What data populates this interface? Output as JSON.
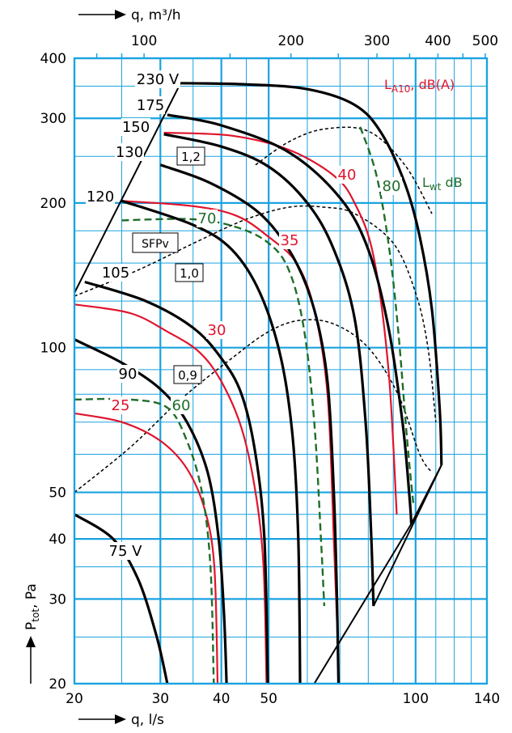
{
  "chart_data": {
    "type": "line",
    "colors": {
      "grid": "#1aa3e0",
      "fan_curve": "#000000",
      "sound_la10": "#e0142c",
      "sound_lwt": "#1e6e2a",
      "sfp": "#000000"
    },
    "axes": {
      "x_bottom": {
        "label": "q, l/s",
        "scale": "log",
        "range": [
          20,
          140
        ],
        "ticks": [
          "20",
          "30",
          "40",
          "50",
          "100",
          "140"
        ]
      },
      "x_top": {
        "label": "q, m³/h",
        "scale": "log",
        "ticks": [
          "100",
          "200",
          "300",
          "400",
          "500"
        ]
      },
      "y": {
        "label": "P_tot, Pa",
        "label_main": "P",
        "label_sub": "tot",
        "label_tail": ", Pa",
        "scale": "log",
        "range": [
          20,
          400
        ],
        "ticks": [
          "20",
          "30",
          "40",
          "50",
          "100",
          "200",
          "300",
          "400"
        ]
      }
    },
    "fan_curves": [
      {
        "name": "230 V",
        "points": [
          [
            33,
            355
          ],
          [
            45,
            353
          ],
          [
            60,
            345
          ],
          [
            75,
            320
          ],
          [
            85,
            280
          ],
          [
            95,
            220
          ],
          [
            102,
            170
          ],
          [
            108,
            120
          ],
          [
            112,
            75
          ],
          [
            113,
            57
          ]
        ]
      },
      {
        "name": "175",
        "points": [
          [
            31,
            305
          ],
          [
            40,
            290
          ],
          [
            55,
            255
          ],
          [
            70,
            205
          ],
          [
            80,
            160
          ],
          [
            88,
            110
          ],
          [
            94,
            70
          ],
          [
            97,
            50
          ],
          [
            98,
            43
          ]
        ]
      },
      {
        "name": "150",
        "points": [
          [
            30.5,
            278
          ],
          [
            40,
            262
          ],
          [
            50,
            238
          ],
          [
            60,
            200
          ],
          [
            68,
            160
          ],
          [
            75,
            115
          ],
          [
            79,
            70
          ],
          [
            81,
            42
          ],
          [
            82,
            29
          ]
        ]
      },
      {
        "name": "130",
        "points": [
          [
            30,
            240
          ],
          [
            38,
            220
          ],
          [
            48,
            190
          ],
          [
            56,
            155
          ],
          [
            62,
            120
          ],
          [
            66,
            85
          ],
          [
            68,
            50
          ],
          [
            69,
            30
          ],
          [
            69.5,
            20
          ]
        ]
      },
      {
        "name": "120",
        "points": [
          [
            25,
            202
          ],
          [
            35,
            180
          ],
          [
            42,
            160
          ],
          [
            48,
            130
          ],
          [
            53,
            95
          ],
          [
            56,
            65
          ],
          [
            57.5,
            40
          ],
          [
            58,
            20
          ]
        ]
      },
      {
        "name": "105",
        "points": [
          [
            21,
            137
          ],
          [
            28,
            125
          ],
          [
            35,
            110
          ],
          [
            40,
            95
          ],
          [
            44,
            80
          ],
          [
            47,
            60
          ],
          [
            49,
            40
          ],
          [
            49.8,
            20
          ]
        ]
      },
      {
        "name": "90",
        "points": [
          [
            20,
            104
          ],
          [
            25,
            93
          ],
          [
            30,
            82
          ],
          [
            34,
            70
          ],
          [
            37.5,
            55
          ],
          [
            39.5,
            40
          ],
          [
            40.5,
            28
          ],
          [
            41,
            20
          ]
        ]
      },
      {
        "name": "75 V",
        "points": [
          [
            20,
            45
          ],
          [
            24,
            40
          ],
          [
            27,
            33
          ],
          [
            29.5,
            25
          ],
          [
            31,
            20
          ]
        ]
      }
    ],
    "la10_curves": [
      {
        "label": "40",
        "points": [
          [
            30.5,
            280
          ],
          [
            42,
            276
          ],
          [
            55,
            258
          ],
          [
            68,
            228
          ],
          [
            75,
            200
          ],
          [
            82,
            155
          ],
          [
            88,
            90
          ],
          [
            91.5,
            45
          ]
        ]
      },
      {
        "label": "35",
        "points": [
          [
            25,
            202
          ],
          [
            35,
            197
          ],
          [
            43,
            188
          ],
          [
            50,
            170
          ],
          [
            57,
            150
          ],
          [
            62,
            120
          ],
          [
            66,
            80
          ],
          [
            68,
            40
          ],
          [
            69,
            27
          ]
        ]
      },
      {
        "label": "30",
        "points": [
          [
            20,
            123
          ],
          [
            26,
            118
          ],
          [
            31,
            108
          ],
          [
            36,
            98
          ],
          [
            40,
            85
          ],
          [
            44,
            68
          ],
          [
            47,
            50
          ],
          [
            48.8,
            35
          ],
          [
            49.5,
            20
          ]
        ]
      },
      {
        "label": "25",
        "points": [
          [
            20,
            73
          ],
          [
            25,
            70
          ],
          [
            30,
            64
          ],
          [
            34,
            56
          ],
          [
            37,
            46
          ],
          [
            38.7,
            35
          ],
          [
            39.3,
            20
          ]
        ]
      }
    ],
    "lwt_curves": [
      {
        "label": "80",
        "points": [
          [
            77,
            288
          ],
          [
            83,
            230
          ],
          [
            88,
            165
          ],
          [
            92,
            110
          ],
          [
            96,
            65
          ],
          [
            99,
            47
          ]
        ]
      },
      {
        "label": "70",
        "points": [
          [
            25,
            184
          ],
          [
            35,
            185
          ],
          [
            43,
            178
          ],
          [
            50,
            165
          ],
          [
            55,
            145
          ],
          [
            59,
            110
          ],
          [
            62,
            70
          ],
          [
            64,
            40
          ],
          [
            65,
            29
          ]
        ]
      },
      {
        "label": "60",
        "points": [
          [
            20,
            78
          ],
          [
            26,
            78
          ],
          [
            31,
            75
          ],
          [
            34,
            64
          ],
          [
            36.5,
            50
          ],
          [
            38,
            35
          ],
          [
            38.6,
            20
          ]
        ]
      }
    ],
    "sfp_curves": [
      {
        "label": "1,2",
        "points": [
          [
            47,
            240
          ],
          [
            55,
            268
          ],
          [
            65,
            285
          ],
          [
            80,
            282
          ],
          [
            95,
            240
          ],
          [
            108,
            190
          ]
        ]
      },
      {
        "label": "1,0",
        "points": [
          [
            20,
            128
          ],
          [
            27,
            145
          ],
          [
            36,
            167
          ],
          [
            45,
            185
          ],
          [
            55,
            196
          ],
          [
            65,
            196
          ],
          [
            75,
            190
          ],
          [
            90,
            165
          ],
          [
            100,
            130
          ],
          [
            106,
            100
          ],
          [
            110,
            70
          ]
        ]
      },
      {
        "label": "0,9",
        "points": [
          [
            20,
            50
          ],
          [
            26,
            62
          ],
          [
            33,
            78
          ],
          [
            42,
            95
          ],
          [
            50,
            108
          ],
          [
            58,
            114
          ],
          [
            68,
            112
          ],
          [
            80,
            100
          ],
          [
            92,
            80
          ],
          [
            102,
            60
          ],
          [
            108,
            55
          ]
        ]
      }
    ],
    "envelope": {
      "left": [
        [
          20,
          130
        ],
        [
          33,
          355
        ]
      ],
      "right_upper": [
        [
          113,
          57
        ],
        [
          98,
          43
        ]
      ],
      "bottom": [
        [
          62,
          20
        ],
        [
          98,
          43
        ]
      ],
      "right_edge": [
        [
          113,
          57
        ],
        [
          82,
          29
        ]
      ]
    },
    "annotations": {
      "la10_title": "L_A10, dB(A)",
      "la10_main": "L",
      "la10_sub": "A10",
      "la10_tail": ", dB(A)",
      "lwt_title": "L_wt dB",
      "lwt_main": "L",
      "lwt_sub": "wt",
      "lwt_tail": " dB",
      "sfp_title": "SFPv"
    }
  }
}
